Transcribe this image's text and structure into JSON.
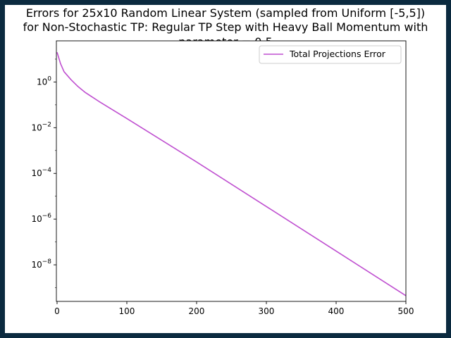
{
  "chart_data": {
    "type": "line",
    "title_lines": [
      "Errors for 25x10 Random Linear System (sampled from Uniform [-5,5])",
      "for Non-Stochastic TP: Regular TP Step with Heavy Ball Momentum with",
      "parameter = 0.5"
    ],
    "xlabel": "",
    "ylabel": "",
    "xlim": [
      -1,
      500
    ],
    "ylim_log10": [
      -9.6,
      1.8
    ],
    "y_scale": "log",
    "x_ticks": [
      0,
      100,
      200,
      300,
      400,
      500
    ],
    "y_ticks_exponent": [
      0,
      -2,
      -4,
      -6,
      -8
    ],
    "grid": false,
    "legend_position": "top-right",
    "series": [
      {
        "name": "Total Projections Error",
        "color": "#bf4fd0",
        "points": [
          {
            "x": 0,
            "y": 1.3
          },
          {
            "x": 5,
            "y": 0.8
          },
          {
            "x": 10,
            "y": 0.45
          },
          {
            "x": 20,
            "y": 0.1
          },
          {
            "x": 30,
            "y": -0.2
          },
          {
            "x": 40,
            "y": -0.45
          },
          {
            "x": 60,
            "y": -0.85
          },
          {
            "x": 100,
            "y": -1.6
          },
          {
            "x": 200,
            "y": -3.5
          },
          {
            "x": 300,
            "y": -5.45
          },
          {
            "x": 400,
            "y": -7.4
          },
          {
            "x": 500,
            "y": -9.35
          }
        ]
      }
    ]
  }
}
